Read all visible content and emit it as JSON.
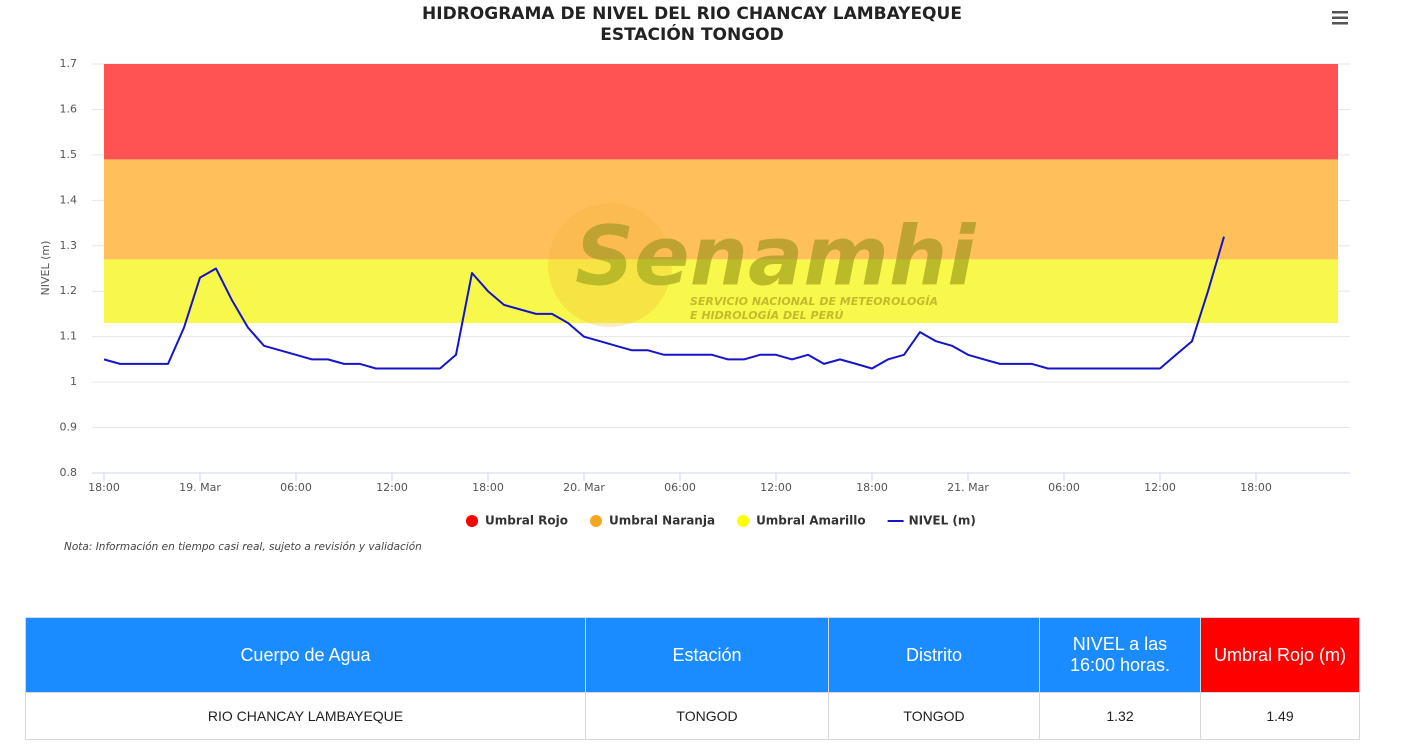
{
  "chart_data": {
    "type": "line",
    "title": "HIDROGRAMA DE NIVEL DEL RIO CHANCAY LAMBAYEQUE",
    "subtitle": "ESTACIÓN TONGOD",
    "y_label": "NIVEL (m)",
    "note": "Nota: Información en tiempo casi real, sujeto a revisión y validación",
    "watermark": {
      "name": "Senamhi",
      "line1": "SERVICIO NACIONAL DE METEOROLOGÍA",
      "line2": "E HIDROLOGÍA DEL PERÚ"
    },
    "xlim": [
      -0.75,
      77.875
    ],
    "xticks": [
      {
        "value": 0,
        "label": "18:00"
      },
      {
        "value": 6,
        "label": "19. Mar"
      },
      {
        "value": 12,
        "label": "06:00"
      },
      {
        "value": 18,
        "label": "12:00"
      },
      {
        "value": 24,
        "label": "18:00"
      },
      {
        "value": 30,
        "label": "20. Mar"
      },
      {
        "value": 36,
        "label": "06:00"
      },
      {
        "value": 42,
        "label": "12:00"
      },
      {
        "value": 48,
        "label": "18:00"
      },
      {
        "value": 54,
        "label": "21. Mar"
      },
      {
        "value": 60,
        "label": "06:00"
      },
      {
        "value": 66,
        "label": "12:00"
      },
      {
        "value": 72,
        "label": "18:00"
      }
    ],
    "ylim": [
      0.8,
      1.7
    ],
    "yticks": [
      0.8,
      0.9,
      1,
      1.1,
      1.2,
      1.3,
      1.4,
      1.5,
      1.6,
      1.7
    ],
    "grid": true,
    "bands": [
      {
        "name": "Umbral Rojo",
        "color": "#ff5252",
        "legend_color": "#ff0000",
        "from": 1.49,
        "to": 1.7
      },
      {
        "name": "Umbral Naranja",
        "color": "#ffc05c",
        "legend_color": "#f5a623",
        "from": 1.27,
        "to": 1.49
      },
      {
        "name": "Umbral Amarillo",
        "color": "#f8f84c",
        "legend_color": "#ffff00",
        "from": 1.13,
        "to": 1.27
      }
    ],
    "x": [
      0,
      1,
      2,
      3,
      4,
      5,
      6,
      7,
      8,
      9,
      10,
      11,
      12,
      13,
      14,
      15,
      16,
      17,
      18,
      19,
      20,
      21,
      22,
      23,
      24,
      25,
      26,
      27,
      28,
      29,
      30,
      31,
      32,
      33,
      34,
      35,
      36,
      37,
      38,
      39,
      40,
      41,
      42,
      43,
      44,
      45,
      46,
      47,
      48,
      49,
      50,
      51,
      52,
      53,
      54,
      55,
      56,
      57,
      58,
      59,
      60,
      61,
      62,
      63,
      64,
      65,
      66,
      67,
      68,
      69,
      70
    ],
    "series": [
      {
        "name": "NIVEL (m)",
        "color": "#1414c8",
        "values": [
          1.05,
          1.04,
          1.04,
          1.04,
          1.04,
          1.12,
          1.23,
          1.25,
          1.18,
          1.12,
          1.08,
          1.07,
          1.06,
          1.05,
          1.05,
          1.04,
          1.04,
          1.03,
          1.03,
          1.03,
          1.03,
          1.03,
          1.06,
          1.24,
          1.2,
          1.17,
          1.16,
          1.15,
          1.15,
          1.13,
          1.1,
          1.09,
          1.08,
          1.07,
          1.07,
          1.06,
          1.06,
          1.06,
          1.06,
          1.05,
          1.05,
          1.06,
          1.06,
          1.05,
          1.06,
          1.04,
          1.05,
          1.04,
          1.03,
          1.05,
          1.06,
          1.11,
          1.09,
          1.08,
          1.06,
          1.05,
          1.04,
          1.04,
          1.04,
          1.03,
          1.03,
          1.03,
          1.03,
          1.03,
          1.03,
          1.03,
          1.03,
          1.06,
          1.09,
          1.2,
          1.32
        ]
      }
    ]
  },
  "table": {
    "headers": [
      "Cuerpo de Agua",
      "Estación",
      "Distrito",
      "NIVEL a las 16:00 horas.",
      "Umbral Rojo (m)"
    ],
    "rows": [
      [
        "RIO CHANCAY LAMBAYEQUE",
        "TONGOD",
        "TONGOD",
        1.32,
        1.49
      ]
    ]
  }
}
